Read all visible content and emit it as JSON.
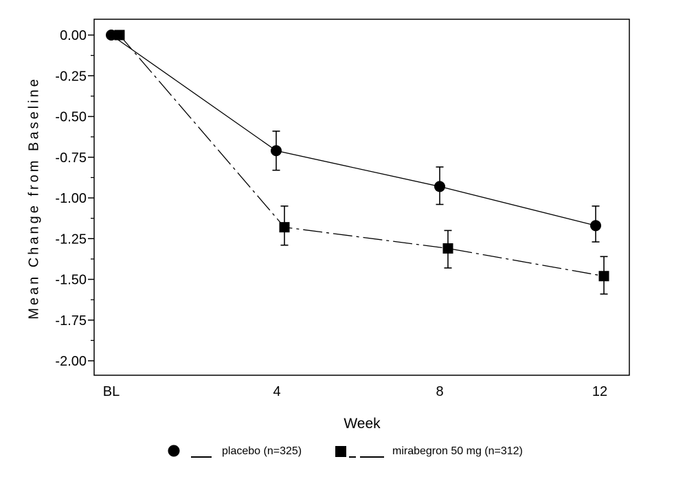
{
  "figure": {
    "background": "#ffffff",
    "foreground": "#000000"
  },
  "chart_data": {
    "type": "line",
    "title": "",
    "xlabel": "Week",
    "ylabel": "Mean Change from Baseline",
    "x_categories": [
      "BL",
      "4",
      "8",
      "12"
    ],
    "y_ticks": [
      "0.00",
      "-0.25",
      "-0.50",
      "-0.75",
      "-1.00",
      "-1.25",
      "-1.50",
      "-1.75",
      "-2.00"
    ],
    "ylim": [
      -2.09,
      0.1
    ],
    "grid": false,
    "legend_position": "bottom",
    "error_bars": true,
    "series": [
      {
        "name": "placebo (n=325)",
        "marker": "circle",
        "line_style": "solid",
        "color": "#000000",
        "values": [
          0.0,
          -0.71,
          -0.93,
          -1.17
        ],
        "error_high": [
          null,
          -0.59,
          -0.81,
          -1.05
        ],
        "error_low": [
          null,
          -0.83,
          -1.04,
          -1.27
        ]
      },
      {
        "name": "mirabegron 50 mg (n=312)",
        "marker": "square",
        "line_style": "dash-dot",
        "color": "#000000",
        "values": [
          0.0,
          -1.18,
          -1.31,
          -1.48
        ],
        "error_high": [
          null,
          -1.05,
          -1.2,
          -1.36
        ],
        "error_low": [
          null,
          -1.29,
          -1.43,
          -1.59
        ]
      }
    ]
  }
}
